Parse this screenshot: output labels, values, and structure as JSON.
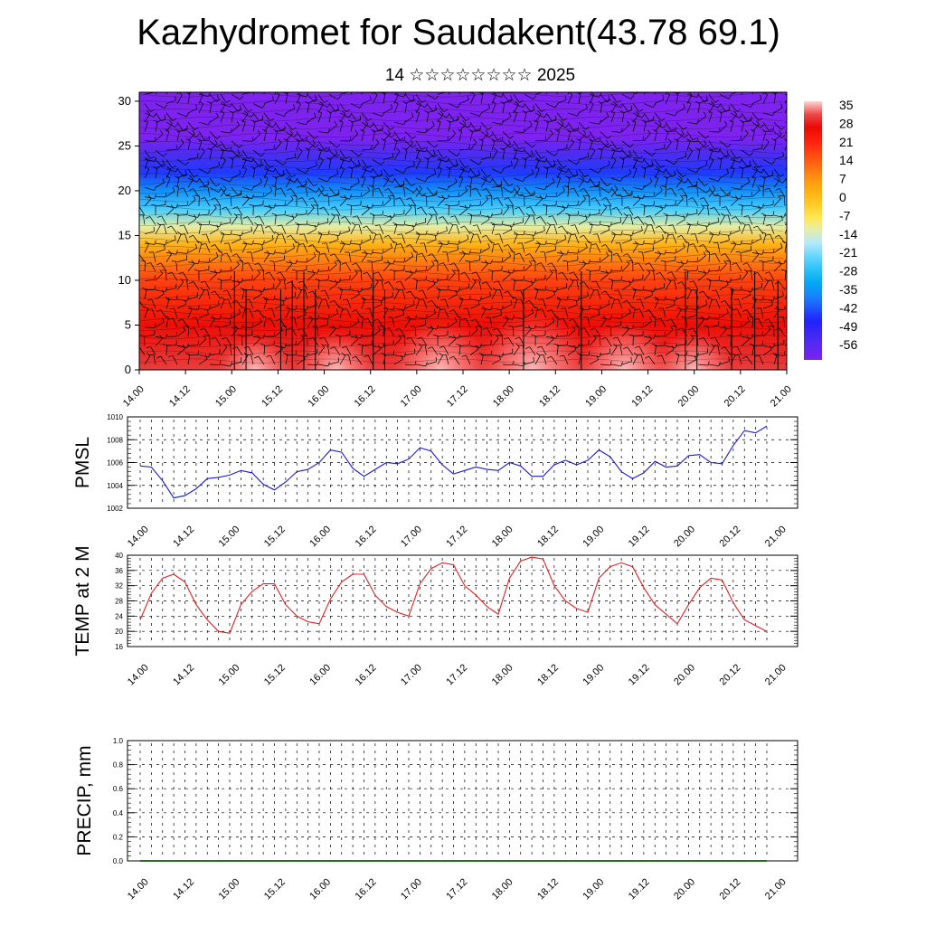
{
  "title": "Kazhydromet for Saudakent(43.78 69.1)",
  "subtitle": "14 ☆☆☆☆☆☆☆☆ 2025",
  "colorbar": {
    "labels": [
      "35",
      "28",
      "21",
      "14",
      "7",
      "0",
      "-7",
      "-14",
      "-21",
      "-28",
      "-35",
      "-42",
      "-49",
      "-56"
    ]
  },
  "chart_data": [
    {
      "type": "heatmap",
      "panel": "cross-section",
      "x_ticks": [
        "14.00",
        "14.12",
        "15.00",
        "15.12",
        "16.00",
        "16.12",
        "17.00",
        "17.12",
        "18.00",
        "18.12",
        "19.00",
        "19.12",
        "20.00",
        "20.12",
        "21.00"
      ],
      "y_ticks": [
        "0",
        "5",
        "10",
        "15",
        "20",
        "25",
        "30"
      ],
      "ylim": [
        0,
        31
      ],
      "color_scale": [
        -56,
        35
      ],
      "profile_y": [
        0,
        5,
        10,
        14,
        16,
        18,
        20,
        22,
        24,
        26,
        28,
        31
      ],
      "profile_temp": [
        30,
        25,
        17,
        3,
        -10,
        -22,
        -32,
        -40,
        -49,
        -56,
        -58,
        -58
      ]
    },
    {
      "type": "line",
      "panel": "pmsl",
      "ylabel": "PMSL",
      "x_ticks": [
        "14.00",
        "14.12",
        "15.00",
        "15.12",
        "16.00",
        "16.12",
        "17.00",
        "17.12",
        "18.00",
        "18.12",
        "19.00",
        "19.12",
        "20.00",
        "20.12",
        "21.00"
      ],
      "y_ticks": [
        "1010",
        "1008",
        "1006",
        "1004",
        "1002"
      ],
      "ylim": [
        1002,
        1010
      ],
      "grid": true,
      "series": [
        {
          "color": "#1a1ad6",
          "values": [
            1005.7,
            1005.6,
            1004.4,
            1002.9,
            1003.1,
            1003.7,
            1004.6,
            1004.7,
            1004.9,
            1005.3,
            1005.1,
            1004.1,
            1003.6,
            1004.3,
            1005.2,
            1005.4,
            1006.0,
            1007.1,
            1006.9,
            1005.5,
            1004.8,
            1005.4,
            1006.0,
            1005.9,
            1006.3,
            1007.3,
            1007.0,
            1005.8,
            1005.0,
            1005.3,
            1005.6,
            1005.4,
            1005.3,
            1006.0,
            1005.7,
            1004.8,
            1004.8,
            1005.8,
            1006.2,
            1005.8,
            1006.2,
            1007.1,
            1006.5,
            1005.2,
            1004.6,
            1005.1,
            1006.1,
            1005.6,
            1005.7,
            1006.6,
            1006.7,
            1006.0,
            1005.9,
            1007.5,
            1008.8,
            1008.6,
            1009.2
          ]
        }
      ]
    },
    {
      "type": "line",
      "panel": "temp2m",
      "ylabel": "TEMP at 2 M",
      "x_ticks": [
        "14.00",
        "14.12",
        "15.00",
        "15.12",
        "16.00",
        "16.12",
        "17.00",
        "17.12",
        "18.00",
        "18.12",
        "19.00",
        "19.12",
        "20.00",
        "20.12",
        "21.00"
      ],
      "y_ticks": [
        "40",
        "36",
        "32",
        "28",
        "24",
        "20",
        "16"
      ],
      "ylim": [
        16,
        40
      ],
      "grid": true,
      "series": [
        {
          "color": "#e02020",
          "values": [
            23,
            30,
            34,
            35,
            33,
            27,
            23,
            20,
            19.5,
            27,
            30.5,
            32.5,
            32.5,
            27,
            24,
            22.5,
            22,
            28.5,
            33,
            35,
            35,
            29.5,
            26.5,
            25,
            24,
            32.5,
            36.5,
            38,
            37.5,
            32,
            29.5,
            26.5,
            24.5,
            34,
            38.5,
            39.5,
            39,
            32,
            28,
            26,
            25,
            34,
            37,
            38,
            37,
            31.5,
            27,
            24.5,
            22,
            27,
            31.5,
            34,
            33.5,
            27.5,
            23,
            21.5,
            20
          ]
        }
      ]
    },
    {
      "type": "line",
      "panel": "precip",
      "ylabel": "PRECIP, mm",
      "x_ticks": [
        "14.00",
        "14.12",
        "15.00",
        "15.12",
        "16.00",
        "16.12",
        "17.00",
        "17.12",
        "18.00",
        "18.12",
        "19.00",
        "19.12",
        "20.00",
        "20.12",
        "21.00"
      ],
      "y_ticks": [
        "1.0",
        "0.8",
        "0.6",
        "0.4",
        "0.2",
        "0.0"
      ],
      "ylim": [
        0,
        1
      ],
      "grid": true,
      "series": [
        {
          "color": "#2a6a2a",
          "values": [
            0,
            0,
            0,
            0,
            0,
            0,
            0,
            0,
            0,
            0,
            0,
            0,
            0,
            0,
            0,
            0,
            0,
            0,
            0,
            0,
            0,
            0,
            0,
            0,
            0,
            0,
            0,
            0,
            0,
            0,
            0,
            0,
            0,
            0,
            0,
            0,
            0,
            0,
            0,
            0,
            0,
            0,
            0,
            0,
            0,
            0,
            0,
            0,
            0,
            0,
            0,
            0,
            0,
            0,
            0,
            0,
            0
          ]
        }
      ]
    }
  ]
}
